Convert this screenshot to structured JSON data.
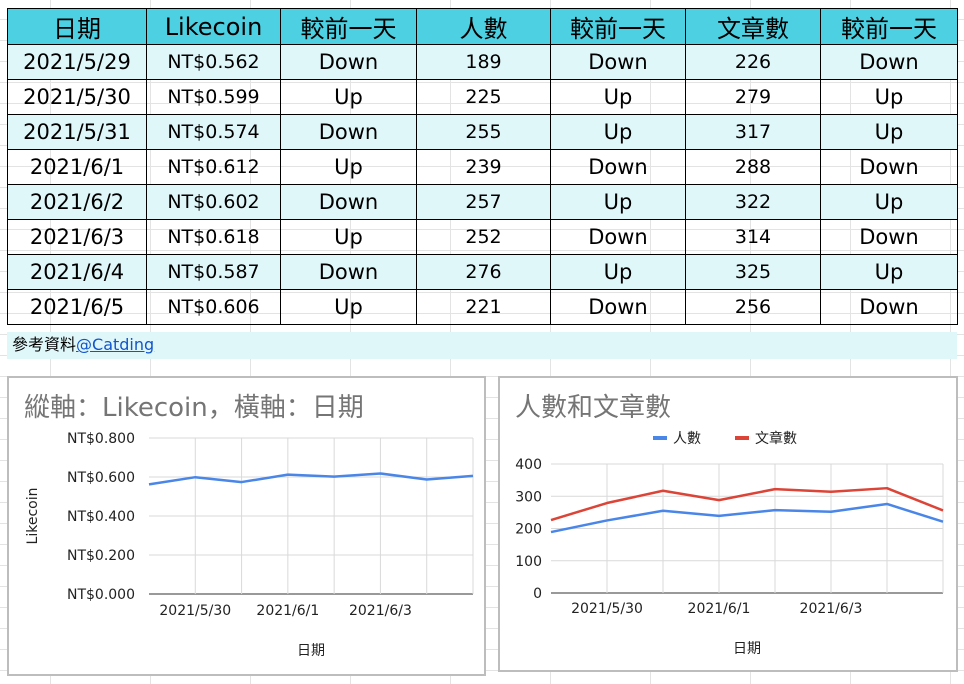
{
  "table": {
    "headers": [
      "日期",
      "Likecoin",
      "較前一天",
      "人數",
      "較前一天",
      "文章數",
      "較前一天"
    ],
    "rows": [
      [
        "2021/5/29",
        "NT$0.562",
        "Down",
        "189",
        "Down",
        "226",
        "Down"
      ],
      [
        "2021/5/30",
        "NT$0.599",
        "Up",
        "225",
        "Up",
        "279",
        "Up"
      ],
      [
        "2021/5/31",
        "NT$0.574",
        "Down",
        "255",
        "Up",
        "317",
        "Up"
      ],
      [
        "2021/6/1",
        "NT$0.612",
        "Up",
        "239",
        "Down",
        "288",
        "Down"
      ],
      [
        "2021/6/2",
        "NT$0.602",
        "Down",
        "257",
        "Up",
        "322",
        "Up"
      ],
      [
        "2021/6/3",
        "NT$0.618",
        "Up",
        "252",
        "Down",
        "314",
        "Down"
      ],
      [
        "2021/6/4",
        "NT$0.587",
        "Down",
        "276",
        "Up",
        "325",
        "Up"
      ],
      [
        "2021/6/5",
        "NT$0.606",
        "Up",
        "221",
        "Down",
        "256",
        "Down"
      ]
    ]
  },
  "reference": {
    "label": "參考資料",
    "link": "@Catding"
  },
  "colors": {
    "header_bg": "#4dd0e1",
    "alt_row_bg": "#e0f7fa",
    "likecoin_line": "#4a86e8",
    "people_line": "#4a86e8",
    "articles_line": "#db4437"
  },
  "chart_data": [
    {
      "type": "line",
      "title": "縱軸：Likecoin，橫軸：日期",
      "xlabel": "日期",
      "ylabel": "Likecoin",
      "x": [
        "2021/5/29",
        "2021/5/30",
        "2021/5/31",
        "2021/6/1",
        "2021/6/2",
        "2021/6/3",
        "2021/6/4",
        "2021/6/5"
      ],
      "xtick_labels": [
        "2021/5/30",
        "2021/6/1",
        "2021/6/3"
      ],
      "ytick_labels": [
        "NT$0.000",
        "NT$0.200",
        "NT$0.400",
        "NT$0.600",
        "NT$0.800"
      ],
      "ylim": [
        0,
        0.8
      ],
      "grid": true,
      "legend": "none",
      "series": [
        {
          "values": [
            0.562,
            0.599,
            0.574,
            0.612,
            0.602,
            0.618,
            0.587,
            0.606
          ]
        }
      ]
    },
    {
      "type": "line",
      "title": "人數和文章數",
      "xlabel": "日期",
      "ylabel": "",
      "x": [
        "2021/5/29",
        "2021/5/30",
        "2021/5/31",
        "2021/6/1",
        "2021/6/2",
        "2021/6/3",
        "2021/6/4",
        "2021/6/5"
      ],
      "xtick_labels": [
        "2021/5/30",
        "2021/6/1",
        "2021/6/3"
      ],
      "ytick_labels": [
        "0",
        "100",
        "200",
        "300",
        "400"
      ],
      "ylim": [
        0,
        400
      ],
      "grid": true,
      "legend": "top",
      "series": [
        {
          "name": "人數",
          "values": [
            189,
            225,
            255,
            239,
            257,
            252,
            276,
            221
          ]
        },
        {
          "name": "文章數",
          "values": [
            226,
            279,
            317,
            288,
            322,
            314,
            325,
            256
          ]
        }
      ]
    }
  ]
}
